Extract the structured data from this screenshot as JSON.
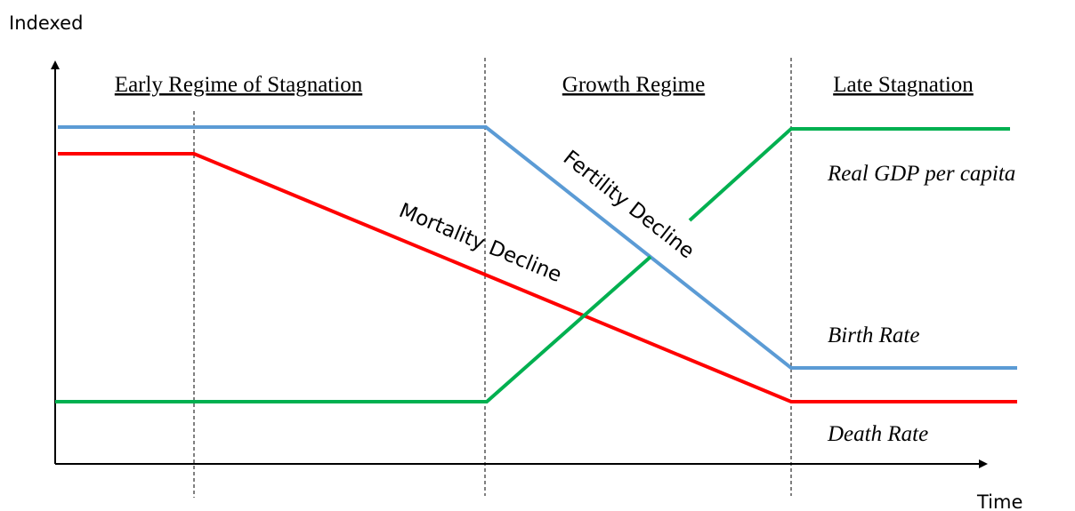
{
  "axes": {
    "y_label": "Indexed",
    "x_label": "Time"
  },
  "regimes": [
    "Early Regime of Stagnation",
    "Growth Regime",
    "Late Stagnation"
  ],
  "curves": [
    "Real GDP per capita",
    "Birth Rate",
    "Death Rate"
  ],
  "annotations": [
    "Mortality Decline",
    "Fertility Decline"
  ]
}
